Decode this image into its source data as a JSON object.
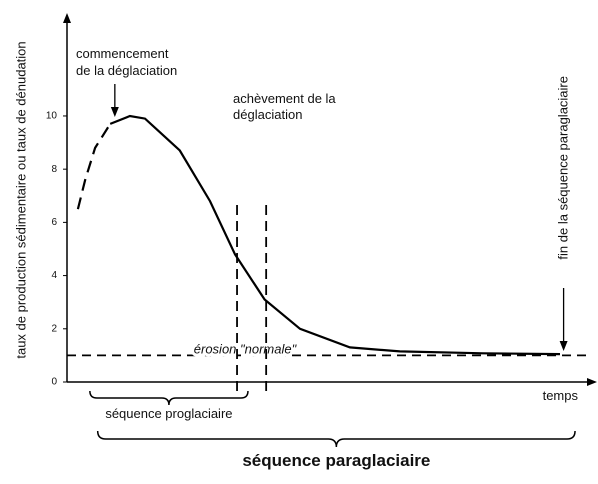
{
  "chart_data": {
    "type": "line",
    "ylabel": "taux de production sédimentaire ou taux de dénudation",
    "xlabel": "temps",
    "xlim": [
      0,
      100
    ],
    "ylim": [
      0,
      10.6
    ],
    "yticks": [
      0,
      2,
      4,
      6,
      8,
      10
    ],
    "series": [
      {
        "color": "#000000",
        "style": "dashed",
        "x": [
          2.1,
          3.5,
          5.4,
          8.3
        ],
        "values": [
          6.5,
          7.6,
          8.8,
          9.7
        ]
      },
      {
        "color": "#000000",
        "style": "solid",
        "x": [
          8.3,
          12.1,
          15,
          21.7,
          27.5,
          32.3,
          38,
          44.8,
          54.4,
          64,
          80,
          94.8
        ],
        "values": [
          9.7,
          10,
          9.9,
          8.7,
          6.8,
          4.8,
          3.1,
          2.0,
          1.3,
          1.15,
          1.08,
          1.05
        ]
      }
    ],
    "hline": {
      "value": 1,
      "label": "érosion \"normale\""
    },
    "vlines": [
      32.7,
      38.3
    ],
    "annotations": [
      {
        "lines": [
          "commencement",
          "de la déglaciation"
        ],
        "x": 9.2
      },
      {
        "lines": [
          "achèvement de la",
          "déglaciation"
        ],
        "x": 32.7
      },
      {
        "lines": [
          "fin de la séquence paraglaciaire"
        ],
        "x": 95.5
      }
    ],
    "brackets": [
      {
        "label": "séquence proglaciaire",
        "range": [
          4.4,
          34.8
        ]
      },
      {
        "label": "séquence paraglaciaire",
        "range": [
          5.9,
          97.7
        ]
      }
    ]
  }
}
